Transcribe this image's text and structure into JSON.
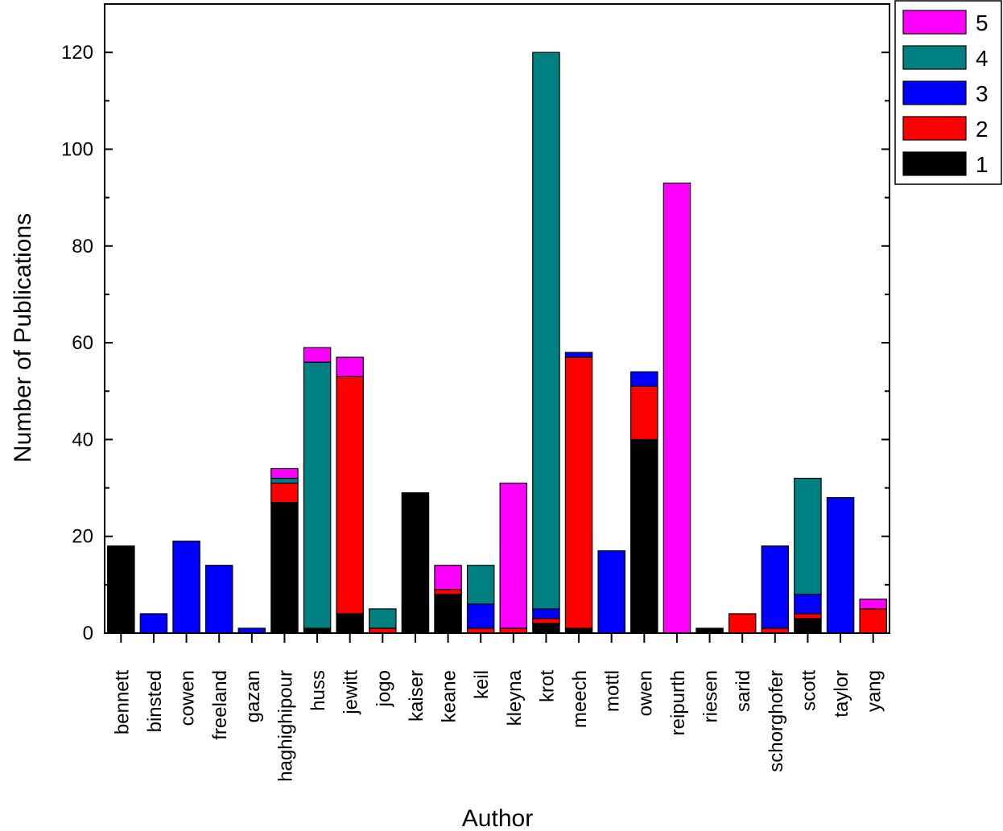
{
  "chart_data": {
    "type": "bar",
    "stacked": true,
    "xlabel": "Author",
    "ylabel": "Number of Publications",
    "ylim": [
      0,
      130
    ],
    "yticks": [
      0,
      20,
      40,
      60,
      80,
      100,
      120
    ],
    "legend_position": "top-right, outside plot",
    "categories": [
      "bennett",
      "binsted",
      "cowen",
      "freeland",
      "gazan",
      "haghighipour",
      "huss",
      "jewitt",
      "jogo",
      "kaiser",
      "keane",
      "keil",
      "kleyna",
      "krot",
      "meech",
      "mottl",
      "owen",
      "reipurth",
      "riesen",
      "sarid",
      "schorghofer",
      "scott",
      "taylor",
      "yang"
    ],
    "series": [
      {
        "name": "1",
        "color": "#000000",
        "values": [
          18,
          0,
          0,
          0,
          0,
          27,
          1,
          4,
          0,
          29,
          8,
          0,
          0,
          2,
          1,
          0,
          40,
          0,
          1,
          0,
          0,
          3,
          0,
          0
        ]
      },
      {
        "name": "2",
        "color": "#ff0000",
        "values": [
          0,
          0,
          0,
          0,
          0,
          4,
          0,
          49,
          1,
          0,
          1,
          1,
          1,
          1,
          56,
          0,
          11,
          0,
          0,
          4,
          1,
          1,
          0,
          5
        ]
      },
      {
        "name": "3",
        "color": "#0000ff",
        "values": [
          0,
          4,
          19,
          14,
          1,
          0,
          0,
          0,
          0,
          0,
          0,
          5,
          0,
          2,
          1,
          17,
          3,
          0,
          0,
          0,
          17,
          4,
          28,
          0
        ]
      },
      {
        "name": "4",
        "color": "#008080",
        "values": [
          0,
          0,
          0,
          0,
          0,
          1,
          55,
          0,
          4,
          0,
          0,
          8,
          0,
          115,
          0,
          0,
          0,
          0,
          0,
          0,
          0,
          24,
          0,
          0
        ]
      },
      {
        "name": "5",
        "color": "#ff00ff",
        "values": [
          0,
          0,
          0,
          0,
          0,
          2,
          3,
          4,
          0,
          0,
          5,
          0,
          30,
          0,
          0,
          0,
          0,
          93,
          0,
          0,
          0,
          0,
          0,
          2
        ]
      }
    ]
  }
}
